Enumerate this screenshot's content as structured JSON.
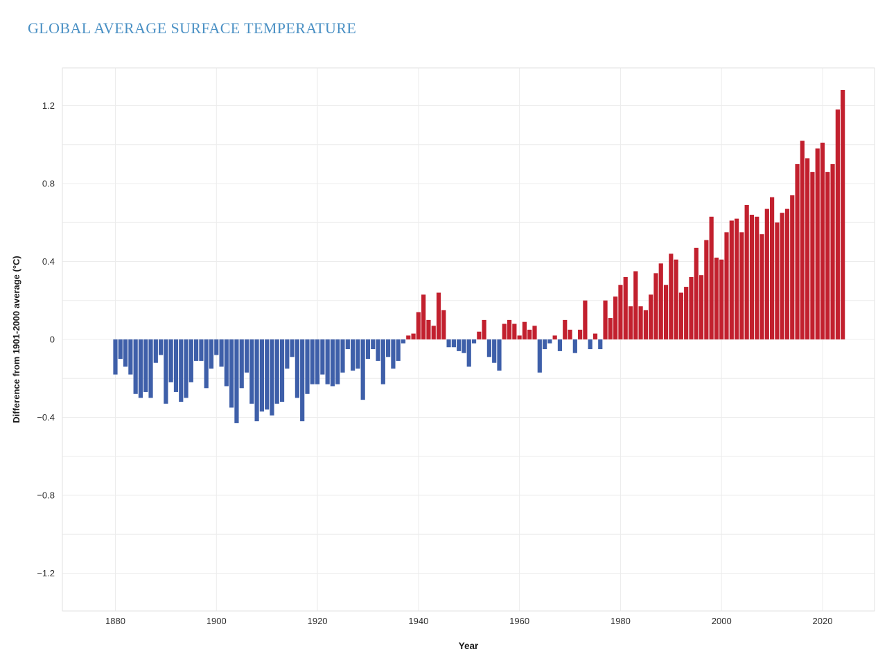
{
  "title": "GLOBAL AVERAGE SURFACE TEMPERATURE",
  "colors": {
    "title": "#4a90c4",
    "positive_bar": "#c2202e",
    "negative_bar": "#3e5fa9",
    "gridline": "#ececec",
    "plot_border": "#e2e2e2",
    "tick_text": "#2e2e2e",
    "axis_title_text": "#1a1a1a",
    "background": "#ffffff"
  },
  "chart_data": {
    "type": "bar",
    "title": "GLOBAL AVERAGE SURFACE TEMPERATURE",
    "xlabel": "Year",
    "ylabel": "Difference from 1901-2000 average (°C)",
    "x_tick_labels": [
      "1880",
      "1900",
      "1920",
      "1940",
      "1960",
      "1980",
      "2000",
      "2020"
    ],
    "x_tick_years": [
      1880,
      1900,
      1920,
      1940,
      1960,
      1980,
      2000,
      2020
    ],
    "y_tick_labels": [
      "1.2",
      "0.8",
      "0.4",
      "0",
      "−0.4",
      "−0.8",
      "−1.2"
    ],
    "y_tick_values": [
      1.2,
      0.8,
      0.4,
      0,
      -0.4,
      -0.8,
      -1.2
    ],
    "minor_grid_step": 0.2,
    "ylim": [
      -1.3933,
      1.3933
    ],
    "grid": true,
    "legend": "none",
    "start_year": 1880,
    "end_year": 2024,
    "values": [
      -0.18,
      -0.1,
      -0.14,
      -0.18,
      -0.28,
      -0.3,
      -0.27,
      -0.3,
      -0.12,
      -0.08,
      -0.33,
      -0.22,
      -0.27,
      -0.32,
      -0.3,
      -0.22,
      -0.11,
      -0.11,
      -0.25,
      -0.15,
      -0.08,
      -0.14,
      -0.24,
      -0.35,
      -0.43,
      -0.25,
      -0.17,
      -0.33,
      -0.42,
      -0.37,
      -0.36,
      -0.39,
      -0.33,
      -0.32,
      -0.15,
      -0.09,
      -0.3,
      -0.42,
      -0.28,
      -0.23,
      -0.23,
      -0.18,
      -0.23,
      -0.24,
      -0.23,
      -0.17,
      -0.05,
      -0.16,
      -0.15,
      -0.31,
      -0.1,
      -0.05,
      -0.11,
      -0.23,
      -0.09,
      -0.15,
      -0.11,
      -0.02,
      0.02,
      0.03,
      0.14,
      0.23,
      0.1,
      0.07,
      0.24,
      0.15,
      -0.04,
      -0.04,
      -0.06,
      -0.07,
      -0.14,
      -0.02,
      0.04,
      0.1,
      -0.09,
      -0.12,
      -0.16,
      0.08,
      0.1,
      0.08,
      0.02,
      0.09,
      0.05,
      0.07,
      -0.17,
      -0.05,
      -0.02,
      0.02,
      -0.06,
      0.1,
      0.05,
      -0.07,
      0.05,
      0.2,
      -0.05,
      0.03,
      -0.05,
      0.2,
      0.11,
      0.22,
      0.28,
      0.32,
      0.17,
      0.35,
      0.17,
      0.15,
      0.23,
      0.34,
      0.39,
      0.28,
      0.44,
      0.41,
      0.24,
      0.27,
      0.32,
      0.47,
      0.33,
      0.51,
      0.63,
      0.42,
      0.41,
      0.55,
      0.61,
      0.62,
      0.55,
      0.69,
      0.64,
      0.63,
      0.54,
      0.67,
      0.73,
      0.6,
      0.65,
      0.67,
      0.74,
      0.9,
      1.02,
      0.93,
      0.86,
      0.98,
      1.01,
      0.86,
      0.9,
      1.18,
      1.28
    ]
  }
}
